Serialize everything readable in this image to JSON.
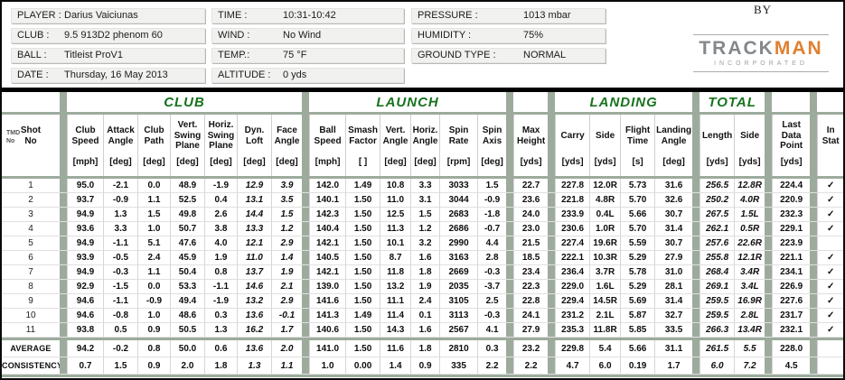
{
  "colors": {
    "group_green": "#17721c",
    "check_green": "#4f9b55",
    "separator": "#9dab9d",
    "muted_gray": "#9b9b9b",
    "logo_gray": "#84888b",
    "logo_orange": "#e08030"
  },
  "header": {
    "by_label": "BY",
    "logo": {
      "track": "TRACK",
      "man": "MAN",
      "subtitle": "INCORPORATED"
    },
    "field_columns": [
      [
        {
          "label": "PLAYER :",
          "value": "Darius Vaiciunas"
        },
        {
          "label": "CLUB :",
          "value": "9.5 913D2 phenom 60"
        },
        {
          "label": "BALL :",
          "value": "Titleist ProV1"
        },
        {
          "label": "DATE :",
          "value": "Thursday, 16 May 2013"
        }
      ],
      [
        {
          "label": "TIME :",
          "value": "10:31-10:42"
        },
        {
          "label": "WIND :",
          "value": "No Wind"
        },
        {
          "label": "TEMP.:",
          "value": "75 °F"
        },
        {
          "label": "ALTITUDE :",
          "value": "0 yds"
        }
      ],
      [
        {
          "label": "PRESSURE :",
          "value": "1013 mbar"
        },
        {
          "label": "HUMIDITY :",
          "value": "75%"
        },
        {
          "label": "GROUND TYPE :",
          "value": "NORMAL"
        }
      ]
    ]
  },
  "table": {
    "group_headers": [
      "CLUB",
      "LAUNCH",
      "LANDING",
      "TOTAL"
    ],
    "shot_col": {
      "tmd": "TMD\nNo",
      "label": "Shot\nNo"
    },
    "in_stat_col": {
      "label": "In\nStat"
    },
    "check_glyph": "✓",
    "columns": [
      {
        "label": "Club\nSpeed",
        "unit": "[mph]"
      },
      {
        "label": "Attack\nAngle",
        "unit": "[deg]"
      },
      {
        "label": "Club\nPath",
        "unit": "[deg]"
      },
      {
        "label": "Vert.\nSwing\nPlane",
        "unit": "[deg]"
      },
      {
        "label": "Horiz.\nSwing\nPlane",
        "unit": "[deg]"
      },
      {
        "label": "Dyn.\nLoft",
        "unit": "[deg]"
      },
      {
        "label": "Face\nAngle",
        "unit": "[deg]"
      },
      {
        "label": "Ball\nSpeed",
        "unit": "[mph]"
      },
      {
        "label": "Smash\nFactor",
        "unit": "[ ]"
      },
      {
        "label": "Vert.\nAngle",
        "unit": "[deg]"
      },
      {
        "label": "Horiz.\nAngle",
        "unit": "[deg]"
      },
      {
        "label": "Spin\nRate",
        "unit": "[rpm]"
      },
      {
        "label": "Spin\nAxis",
        "unit": "[deg]"
      },
      {
        "label": "Max\nHeight",
        "unit": "[yds]"
      },
      {
        "label": "Carry",
        "unit": "[yds]"
      },
      {
        "label": "Side",
        "unit": "[yds]"
      },
      {
        "label": "Flight\nTime",
        "unit": "[s]"
      },
      {
        "label": "Landing\nAngle",
        "unit": "[deg]"
      },
      {
        "label": "Length",
        "unit": "[yds]"
      },
      {
        "label": "Side",
        "unit": "[yds]"
      },
      {
        "label": "Last\nData\nPoint",
        "unit": "[yds]"
      }
    ],
    "rows": [
      {
        "no": "1",
        "values": [
          "95.0",
          "-2.1",
          "0.0",
          "48.9",
          "-1.9",
          "12.9",
          "3.9",
          "142.0",
          "1.49",
          "10.8",
          "3.3",
          "3033",
          "1.5",
          "22.7",
          "227.8",
          "12.0R",
          "5.73",
          "31.6",
          "256.5",
          "12.8R",
          "224.4"
        ],
        "in_stat": true
      },
      {
        "no": "2",
        "values": [
          "93.7",
          "-0.9",
          "1.1",
          "52.5",
          "0.4",
          "13.1",
          "3.5",
          "140.1",
          "1.50",
          "11.0",
          "3.1",
          "3044",
          "-0.9",
          "23.6",
          "221.8",
          "4.8R",
          "5.70",
          "32.6",
          "250.2",
          "4.0R",
          "220.9"
        ],
        "in_stat": true
      },
      {
        "no": "3",
        "values": [
          "94.9",
          "1.3",
          "1.5",
          "49.8",
          "2.6",
          "14.4",
          "1.5",
          "142.3",
          "1.50",
          "12.5",
          "1.5",
          "2683",
          "-1.8",
          "24.0",
          "233.9",
          "0.4L",
          "5.66",
          "30.7",
          "267.5",
          "1.5L",
          "232.3"
        ],
        "in_stat": true
      },
      {
        "no": "4",
        "values": [
          "93.6",
          "3.3",
          "1.0",
          "50.7",
          "3.8",
          "13.3",
          "1.2",
          "140.4",
          "1.50",
          "11.3",
          "1.2",
          "2686",
          "-0.7",
          "23.0",
          "230.6",
          "1.0R",
          "5.70",
          "31.4",
          "262.1",
          "0.5R",
          "229.1"
        ],
        "in_stat": true
      },
      {
        "no": "5",
        "values": [
          "94.9",
          "-1.1",
          "5.1",
          "47.6",
          "4.0",
          "12.1",
          "2.9",
          "142.1",
          "1.50",
          "10.1",
          "3.2",
          "2990",
          "4.4",
          "21.5",
          "227.4",
          "19.6R",
          "5.59",
          "30.7",
          "257.6",
          "22.6R",
          "223.9"
        ],
        "in_stat": false
      },
      {
        "no": "6",
        "values": [
          "93.9",
          "-0.5",
          "2.4",
          "45.9",
          "1.9",
          "11.0",
          "1.4",
          "140.5",
          "1.50",
          "8.7",
          "1.6",
          "3163",
          "2.8",
          "18.5",
          "222.1",
          "10.3R",
          "5.29",
          "27.9",
          "255.8",
          "12.1R",
          "221.1"
        ],
        "in_stat": true
      },
      {
        "no": "7",
        "values": [
          "94.9",
          "-0.3",
          "1.1",
          "50.4",
          "0.8",
          "13.7",
          "1.9",
          "142.1",
          "1.50",
          "11.8",
          "1.8",
          "2669",
          "-0.3",
          "23.4",
          "236.4",
          "3.7R",
          "5.78",
          "31.0",
          "268.4",
          "3.4R",
          "234.1"
        ],
        "in_stat": true
      },
      {
        "no": "8",
        "values": [
          "92.9",
          "-1.5",
          "0.0",
          "53.3",
          "-1.1",
          "14.6",
          "2.1",
          "139.0",
          "1.50",
          "13.2",
          "1.9",
          "2035",
          "-3.7",
          "22.3",
          "229.0",
          "1.6L",
          "5.29",
          "28.1",
          "269.1",
          "3.4L",
          "226.9"
        ],
        "in_stat": true
      },
      {
        "no": "9",
        "values": [
          "94.6",
          "-1.1",
          "-0.9",
          "49.4",
          "-1.9",
          "13.2",
          "2.9",
          "141.6",
          "1.50",
          "11.1",
          "2.4",
          "3105",
          "2.5",
          "22.8",
          "229.4",
          "14.5R",
          "5.69",
          "31.4",
          "259.5",
          "16.9R",
          "227.6"
        ],
        "in_stat": true
      },
      {
        "no": "10",
        "values": [
          "94.6",
          "-0.8",
          "1.0",
          "48.6",
          "0.3",
          "13.6",
          "-0.1",
          "141.3",
          "1.49",
          "11.4",
          "0.1",
          "3113",
          "-0.3",
          "24.1",
          "231.2",
          "2.1L",
          "5.87",
          "32.7",
          "259.5",
          "2.8L",
          "231.7"
        ],
        "in_stat": true
      },
      {
        "no": "11",
        "values": [
          "93.8",
          "0.5",
          "0.9",
          "50.5",
          "1.3",
          "16.2",
          "1.7",
          "140.6",
          "1.50",
          "14.3",
          "1.6",
          "2567",
          "4.1",
          "27.9",
          "235.3",
          "11.8R",
          "5.85",
          "33.5",
          "266.3",
          "13.4R",
          "232.1"
        ],
        "in_stat": true
      }
    ],
    "average": {
      "label": "AVERAGE",
      "values": [
        "94.2",
        "-0.2",
        "0.8",
        "50.0",
        "0.6",
        "13.6",
        "2.0",
        "141.0",
        "1.50",
        "11.6",
        "1.8",
        "2810",
        "0.3",
        "23.2",
        "229.8",
        "5.4",
        "5.66",
        "31.1",
        "261.5",
        "5.5",
        "228.0"
      ],
      "in_stat": false
    },
    "consistency": {
      "label": "CONSISTENCY",
      "values": [
        "0.7",
        "1.5",
        "0.9",
        "2.0",
        "1.8",
        "1.3",
        "1.1",
        "1.0",
        "0.00",
        "1.4",
        "0.9",
        "335",
        "2.2",
        "2.2",
        "4.7",
        "6.0",
        "0.19",
        "1.7",
        "6.0",
        "7.2",
        "4.5"
      ],
      "in_stat": false
    }
  }
}
